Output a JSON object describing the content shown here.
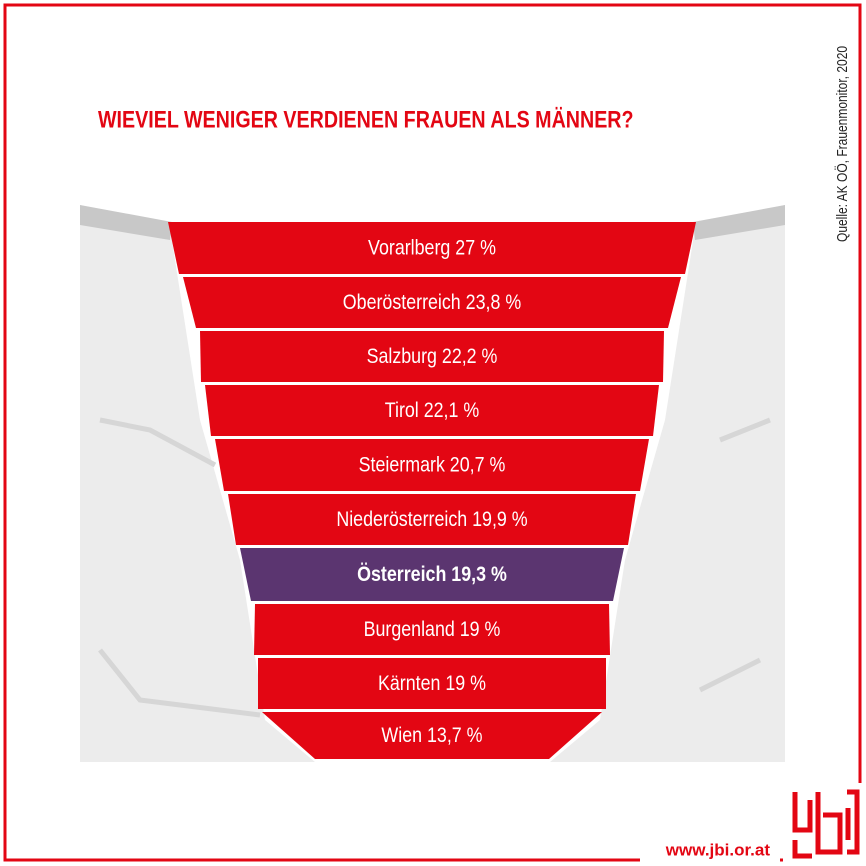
{
  "title": "WIEVIEL WENIGER VERDIENEN FRAUEN ALS MÄNNER?",
  "source": "Quelle: AK OÖ, Frauenmonitor, 2020",
  "url": "www.jbi.or.at",
  "logo": "jbi",
  "rows": [
    {
      "text": "Vorarlberg 27 %",
      "color": "#e30613"
    },
    {
      "text": "Oberösterreich 23,8 %",
      "color": "#e30613"
    },
    {
      "text": "Salzburg 22,2 %",
      "color": "#e30613"
    },
    {
      "text": "Tirol 22,1 %",
      "color": "#e30613"
    },
    {
      "text": "Steiermark 20,7 %",
      "color": "#e30613"
    },
    {
      "text": "Niederösterreich 19,9 %",
      "color": "#e30613"
    },
    {
      "text": "Österreich 19,3 %",
      "color": "#5b3570",
      "bold": true
    },
    {
      "text": "Burgenland 19 %",
      "color": "#e30613"
    },
    {
      "text": "Kärnten 19 %",
      "color": "#e30613"
    },
    {
      "text": "Wien 13,7 %",
      "color": "#e30613"
    }
  ]
}
